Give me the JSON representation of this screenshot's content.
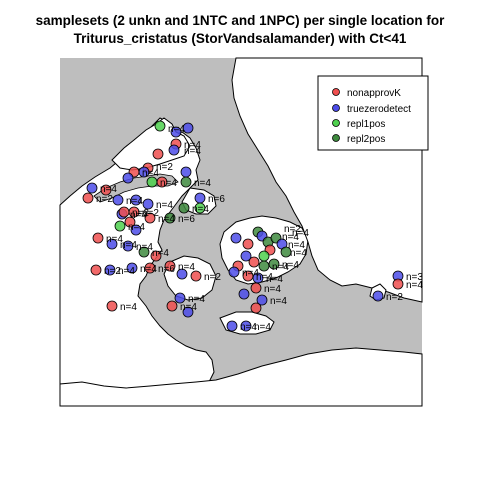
{
  "title": {
    "line1": "samplesets (2 unkn and 1NTC and 1NPC) per single location for",
    "line2": "Triturus_cristatus (StorVandsalamander) with Ct<41"
  },
  "colors": {
    "sea": "#bebebe",
    "land": "#ffffff",
    "nonapprovK": "#ef4f4f",
    "truezerodetect": "#4c4ce8",
    "repl1pos": "#4ed04e",
    "repl2pos": "#3e8a3e"
  },
  "legend": {
    "placement": "top-right",
    "items": [
      {
        "key": "nonapprovK",
        "label": "nonapprovK"
      },
      {
        "key": "truezerodetect",
        "label": "truezerodetect"
      },
      {
        "key": "repl1pos",
        "label": "repl1pos"
      },
      {
        "key": "repl2pos",
        "label": "repl2pos"
      }
    ]
  },
  "point_labels": [
    "n=4",
    "n=4",
    "n=4",
    "n=2",
    "n=4",
    "n=4",
    "n=4",
    "n=6",
    "n=4",
    "n=2",
    "n=4",
    "n=4",
    "n=2",
    "n=4",
    "n=4",
    "n=4",
    "n=6",
    "n=4",
    "n=4",
    "n=4",
    "n=4",
    "n=4",
    "n=2",
    "n=4",
    "n=4",
    "n=6",
    "n=4",
    "n=2",
    "n=4",
    "n=4",
    "n=4",
    "n=4",
    "n=4",
    "n=4",
    "n=4",
    "n=4",
    "n=4",
    "n=4",
    "n=4",
    "n=4",
    "n=3",
    "n=4",
    "n=2",
    "n=2"
  ]
}
